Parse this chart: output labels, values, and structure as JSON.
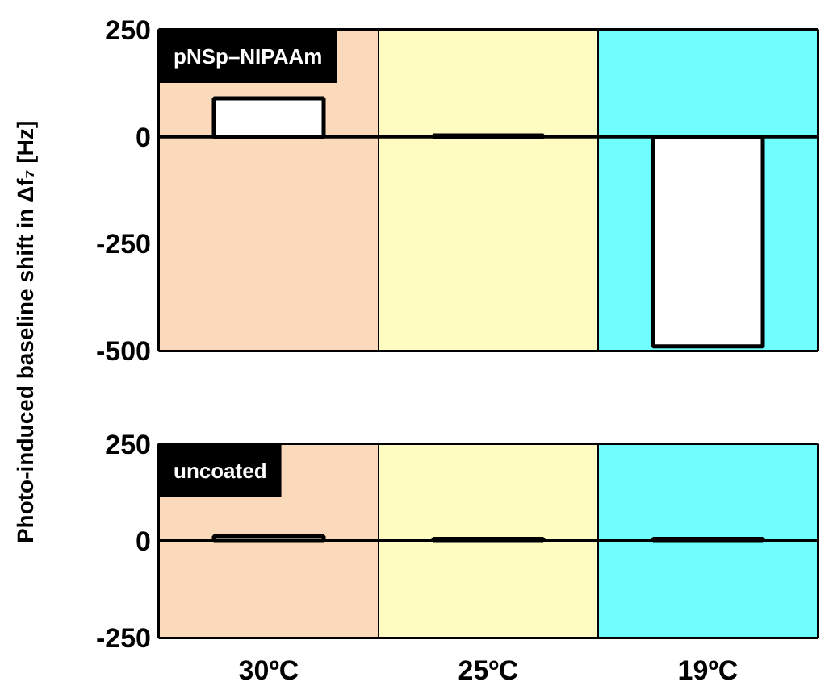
{
  "chart_data": [
    {
      "type": "bar",
      "annotations": [
        "pNSp–NIPAAm"
      ],
      "ylabel": "Photo-induced baseline shift in Δf₇ [Hz]",
      "categories": [
        "30ºC",
        "25ºC",
        "19ºC"
      ],
      "tick_labels": "y",
      "series": [
        {
          "color": "#ffffff",
          "values": [
            90,
            3,
            -490
          ]
        }
      ],
      "ylim": [
        -500,
        250
      ],
      "yticks": [
        250,
        0,
        -250,
        -500
      ],
      "bands": [
        {
          "axis": "x",
          "from": "30ºC",
          "to": "30ºC",
          "color": "#fbdabb"
        },
        {
          "axis": "x",
          "from": "25ºC",
          "to": "25ºC",
          "color": "#fefcc0"
        },
        {
          "axis": "x",
          "from": "19ºC",
          "to": "19ºC",
          "color": "#6ffdfd"
        }
      ],
      "ref_lines": [
        {
          "axis": "y",
          "value": 0
        }
      ]
    },
    {
      "type": "bar",
      "annotations": [
        "uncoated"
      ],
      "categories": [
        "30ºC",
        "25ºC",
        "19ºC"
      ],
      "series": [
        {
          "color": "#ffffff",
          "values": [
            12,
            5,
            5
          ]
        }
      ],
      "ylim": [
        -250,
        250
      ],
      "yticks": [
        250,
        0,
        -250
      ],
      "bands": [
        {
          "axis": "x",
          "from": "30ºC",
          "to": "30ºC",
          "color": "#fbdabb"
        },
        {
          "axis": "x",
          "from": "25ºC",
          "to": "25ºC",
          "color": "#fefcc0"
        },
        {
          "axis": "x",
          "from": "19ºC",
          "to": "19ºC",
          "color": "#6ffdfd"
        }
      ],
      "ref_lines": [
        {
          "axis": "y",
          "value": 0
        }
      ]
    }
  ]
}
